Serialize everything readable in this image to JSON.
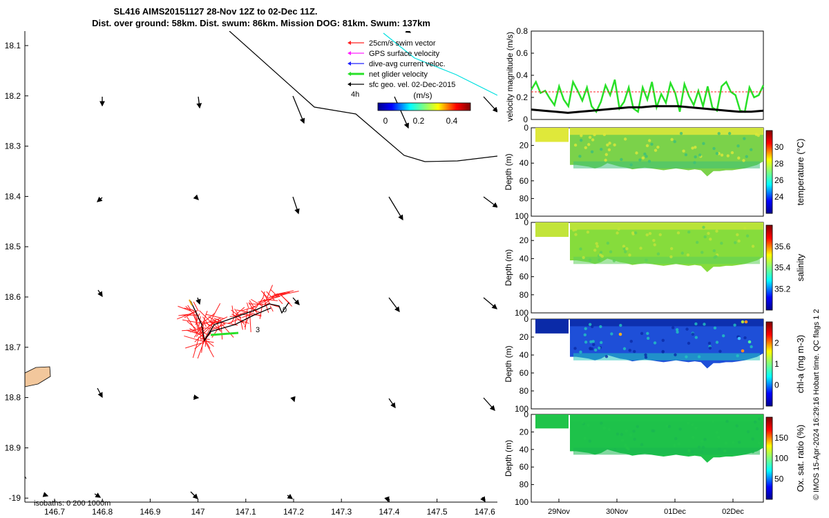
{
  "colors": {
    "chl_background": "#0a2aa8",
    "temp_base": "#7bd24a",
    "sal_base": "#86dc3c",
    "oxy_base": "#1ec24a",
    "vel_line": "#28e028",
    "tide_line": "#000000",
    "ref_line": "#ff2020",
    "section_bg": "#f2c79c"
  },
  "title": {
    "line1": "SL416 AIMS20151127 28-Nov 12Z to 02-Dec 11Z.",
    "line2": "Dist. over ground: 58km. Dist. swum: 86km. Mission DOG: 81km. Swum: 137km"
  },
  "map": {
    "y_ticks": [
      "18.1",
      "18.2",
      "18.3",
      "18.4",
      "18.5",
      "18.6",
      "18.7",
      "18.8",
      "18.9",
      "-19"
    ],
    "x_ticks": [
      "146.7",
      "146.8",
      "146.9",
      "147",
      "147.1",
      "147.2",
      "147.3",
      "147.4",
      "147.5",
      "147.6"
    ],
    "isobaths_label": "isobaths: 0   200  1000m",
    "legend": [
      {
        "label": "25cm/s swim vector",
        "color": "#ff2020"
      },
      {
        "label": "GPS surface velocity",
        "color": "#ff20ff"
      },
      {
        "label": "dive-avg current veloc.",
        "color": "#2020ff"
      },
      {
        "label": "net glider velocity",
        "color": "#28e028"
      },
      {
        "label": "sfc geo. vel. 02-Dec-2015",
        "color": "#000000"
      }
    ],
    "legend_extra": "4h",
    "colorbar": {
      "title": "(m/s)",
      "ticks": [
        "0",
        "0.2",
        "0.4"
      ]
    },
    "track_labels": [
      "0",
      "3"
    ]
  },
  "chart_data": [
    {
      "type": "line",
      "title": "",
      "ylabel": "velocity magnitude (m/s)",
      "ylim": [
        0,
        0.8
      ],
      "yticks": [
        "0",
        "0.2",
        "0.4",
        "0.6",
        "0.8"
      ],
      "series": [
        {
          "name": "net glider velocity",
          "color": "#28e028",
          "values": [
            0.27,
            0.34,
            0.24,
            0.26,
            0.19,
            0.13,
            0.3,
            0.18,
            0.12,
            0.34,
            0.26,
            0.17,
            0.29,
            0.12,
            0.07,
            0.16,
            0.31,
            0.22,
            0.36,
            0.1,
            0.16,
            0.29,
            0.1,
            0.07,
            0.29,
            0.18,
            0.34,
            0.11,
            0.23,
            0.15,
            0.33,
            0.24,
            0.07,
            0.32,
            0.21,
            0.13,
            0.26,
            0.12,
            0.3,
            0.11,
            0.08,
            0.3,
            0.34,
            0.25,
            0.22,
            0.08,
            0.07,
            0.29,
            0.2,
            0.22,
            0.31
          ]
        },
        {
          "name": "sfc geo. vel.",
          "color": "#000000",
          "values": [
            0.09,
            0.08,
            0.07,
            0.06,
            0.07,
            0.08,
            0.09,
            0.1,
            0.11,
            0.11,
            0.12,
            0.12,
            0.12,
            0.11,
            0.1,
            0.09,
            0.08,
            0.07,
            0.07,
            0.08
          ]
        },
        {
          "name": "reference",
          "color": "#ff2020",
          "values": [
            0.25,
            0.25
          ]
        }
      ]
    },
    {
      "type": "heatmap",
      "ylabel": "Depth (m)",
      "clabel": "temperature (°C)",
      "yticks": [
        "0",
        "20",
        "40",
        "60",
        "80",
        "100"
      ],
      "cticks": [
        "24",
        "26",
        "28",
        "30"
      ]
    },
    {
      "type": "heatmap",
      "ylabel": "Depth (m)",
      "clabel": "salinity",
      "yticks": [
        "0",
        "20",
        "40",
        "60",
        "80",
        "100"
      ],
      "cticks": [
        "35.2",
        "35.4",
        "35.6"
      ]
    },
    {
      "type": "heatmap",
      "ylabel": "Depth (m)",
      "clabel": "chl-a (mg m-3)",
      "yticks": [
        "0",
        "20",
        "40",
        "60",
        "80",
        "100"
      ],
      "cticks": [
        "0",
        "1",
        "2"
      ]
    },
    {
      "type": "heatmap",
      "ylabel": "Depth (m)",
      "clabel": "Ox. sat. ratio (%)",
      "yticks": [
        "0",
        "20",
        "40",
        "60",
        "80",
        "100"
      ],
      "cticks": [
        "50",
        "100",
        "150"
      ],
      "x_ticks": [
        "29Nov",
        "30Nov",
        "01Dec",
        "02Dec"
      ]
    }
  ],
  "footer": {
    "timestamp": "© IMOS 15-Apr-2024 16:29:16 Hobart time. QC flags 1  2"
  }
}
